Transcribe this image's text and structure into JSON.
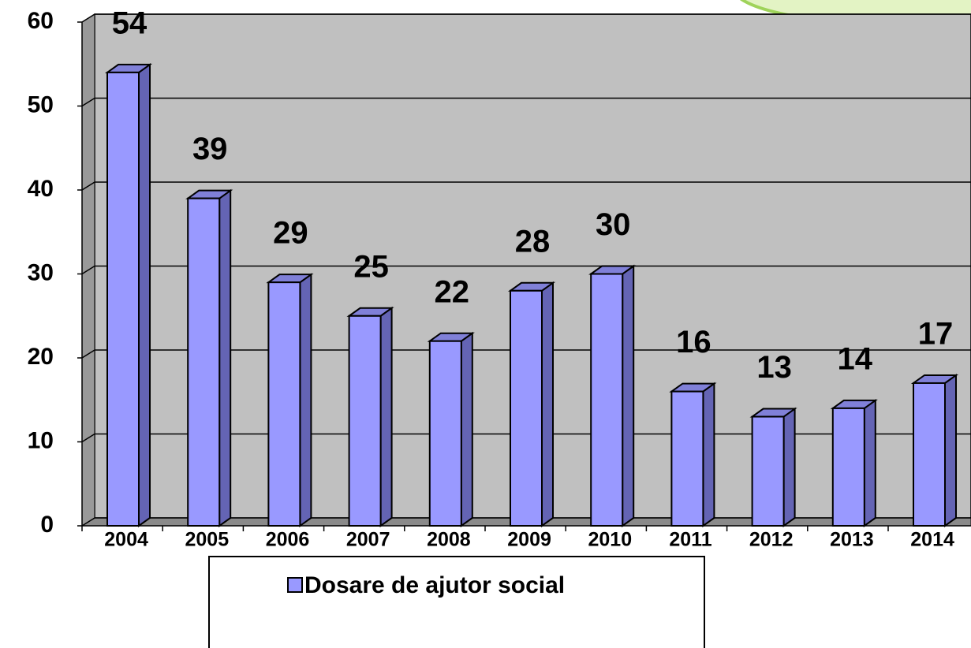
{
  "chart_data": {
    "type": "bar",
    "categories": [
      "2004",
      "2005",
      "2006",
      "2007",
      "2008",
      "2009",
      "2010",
      "2011",
      "2012",
      "2013",
      "2014"
    ],
    "series": [
      {
        "name": "Dosare de ajutor social",
        "color": "#9999ff",
        "values": [
          54,
          39,
          29,
          25,
          22,
          28,
          30,
          16,
          13,
          14,
          17
        ]
      }
    ],
    "ylim": [
      0,
      60
    ],
    "yticks": [
      0,
      10,
      20,
      30,
      40,
      50,
      60
    ],
    "grid": true,
    "legend": "bottom"
  }
}
